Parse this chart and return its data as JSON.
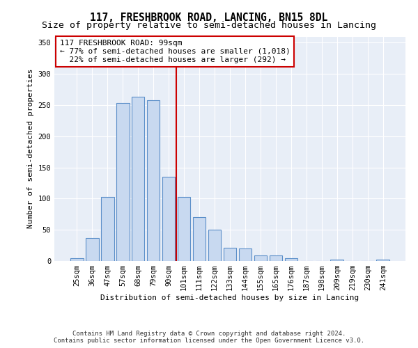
{
  "title": "117, FRESHBROOK ROAD, LANCING, BN15 8DL",
  "subtitle": "Size of property relative to semi-detached houses in Lancing",
  "xlabel": "Distribution of semi-detached houses by size in Lancing",
  "ylabel": "Number of semi-detached properties",
  "categories": [
    "25sqm",
    "36sqm",
    "47sqm",
    "57sqm",
    "68sqm",
    "79sqm",
    "90sqm",
    "101sqm",
    "111sqm",
    "122sqm",
    "133sqm",
    "144sqm",
    "155sqm",
    "165sqm",
    "176sqm",
    "187sqm",
    "198sqm",
    "209sqm",
    "219sqm",
    "230sqm",
    "241sqm"
  ],
  "values": [
    4,
    37,
    103,
    253,
    264,
    258,
    135,
    103,
    70,
    50,
    21,
    20,
    9,
    9,
    5,
    0,
    0,
    2,
    0,
    0,
    2
  ],
  "bar_color": "#c8d9f0",
  "bar_edge_color": "#5b8fc9",
  "property_bin_index": 7,
  "property_label": "117 FRESHBROOK ROAD: 99sqm",
  "pct_smaller": 77,
  "count_smaller": 1018,
  "pct_larger": 22,
  "count_larger": 292,
  "vline_color": "#cc0000",
  "box_edge_color": "#cc0000",
  "ylim_max": 360,
  "yticks": [
    0,
    50,
    100,
    150,
    200,
    250,
    300,
    350
  ],
  "footer_line1": "Contains HM Land Registry data © Crown copyright and database right 2024.",
  "footer_line2": "Contains public sector information licensed under the Open Government Licence v3.0.",
  "plot_bg_color": "#e8eef7",
  "title_fontsize": 10.5,
  "subtitle_fontsize": 9.5,
  "axis_label_fontsize": 8,
  "tick_fontsize": 7.5,
  "footer_fontsize": 6.5,
  "annotation_fontsize": 8
}
